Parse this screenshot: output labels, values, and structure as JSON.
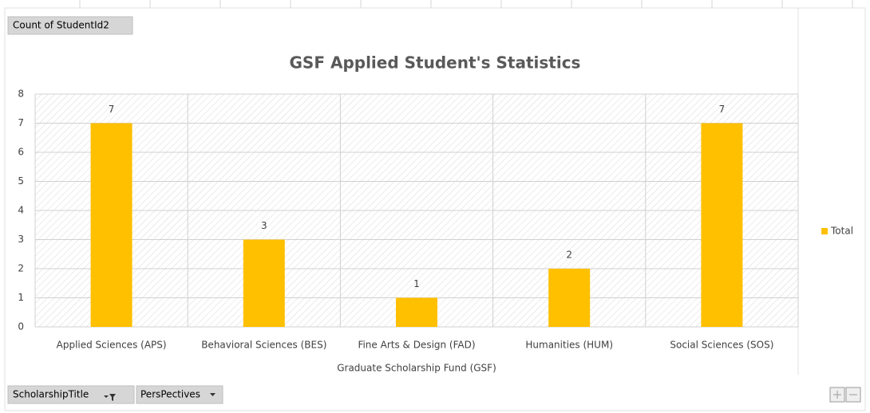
{
  "chart_data": {
    "type": "bar",
    "title": "GSF Applied Student's Statistics",
    "x_label": "Graduate Scholarship Fund (GSF)",
    "categories": [
      "Applied Sciences (APS)",
      "Behavioral Sciences (BES)",
      "Fine Arts & Design (FAD)",
      "Humanities (HUM)",
      "Social Sciences (SOS)"
    ],
    "series": [
      {
        "name": "Total",
        "color": "#ffc000",
        "values": [
          7,
          3,
          1,
          2,
          7
        ]
      }
    ],
    "ylim": [
      0,
      8
    ],
    "yticks": [
      0,
      1,
      2,
      3,
      4,
      5,
      6,
      7,
      8
    ],
    "grid": true,
    "legend": "right",
    "value_field_button": "Count of StudentId2",
    "axis_field_buttons": [
      "ScholarshipTitle",
      "PersPectives"
    ]
  }
}
